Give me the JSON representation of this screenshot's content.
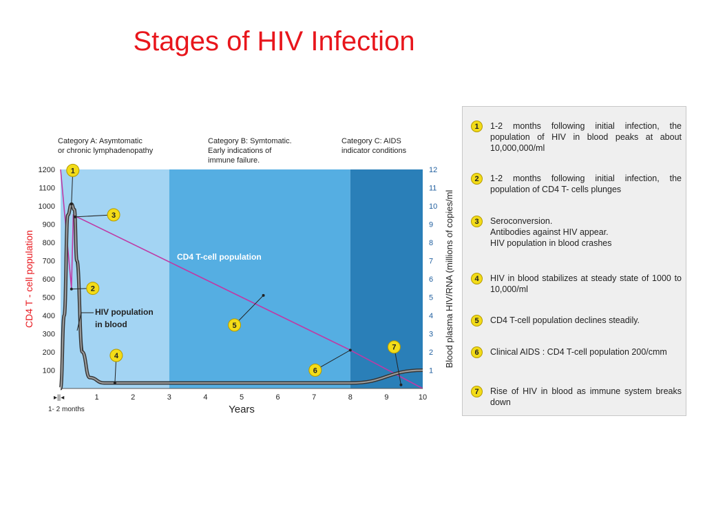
{
  "title": "Stages of HIV Infection",
  "chart_data": {
    "type": "line",
    "x_range": [
      0,
      10
    ],
    "x_ticks": [
      1,
      2,
      3,
      4,
      5,
      6,
      7,
      8,
      9,
      10
    ],
    "x_prefix_label": "1- 2 months",
    "xlabel": "Years",
    "ylabel_left": "CD4 T - cell population",
    "ylabel_right": "Blood plasma HIV/RNA (millions of copies/ml",
    "yleft_range": [
      0,
      1200
    ],
    "yleft_ticks": [
      100,
      200,
      300,
      400,
      500,
      600,
      700,
      800,
      900,
      1000,
      1100,
      1200
    ],
    "yright_range": [
      0,
      12
    ],
    "yright_ticks": [
      1,
      2,
      3,
      4,
      5,
      6,
      7,
      8,
      9,
      10,
      11,
      12
    ],
    "colors": {
      "category_a": "#a3d4f3",
      "category_b": "#55aee2",
      "category_c": "#2a7fb8",
      "cd4_line": "#bf3aa5",
      "hiv_line": "#333333",
      "badge": "#f3dc18",
      "left_axis_label": "#e8161c",
      "right_ticks": "#1f5e9e"
    },
    "categories": [
      {
        "label_line1": "Category A: Asymtomatic",
        "label_line2": "or chronic lymphadenopathy",
        "label_line3": "",
        "x_start": 0,
        "x_end": 3
      },
      {
        "label_line1": "Category B: Symtomatic.",
        "label_line2": "Early indications of",
        "label_line3": "immune failure.",
        "x_start": 3,
        "x_end": 8
      },
      {
        "label_line1": "Category C: AIDS",
        "label_line2": "indicator conditions",
        "label_line3": "",
        "x_start": 8,
        "x_end": 10
      }
    ],
    "series": [
      {
        "name": "CD4 T-cell population",
        "axis": "left",
        "points": [
          [
            0,
            1200
          ],
          [
            0.3,
            550
          ],
          [
            0.35,
            950
          ],
          [
            8,
            210
          ],
          [
            10,
            0
          ]
        ]
      },
      {
        "name_line1": "HIV population",
        "name_line2": "in blood",
        "axis": "right",
        "points": [
          [
            0,
            0
          ],
          [
            0.1,
            4
          ],
          [
            0.2,
            9.5
          ],
          [
            0.3,
            10.1
          ],
          [
            0.38,
            9.8
          ],
          [
            0.45,
            7
          ],
          [
            0.6,
            2
          ],
          [
            0.8,
            0.6
          ],
          [
            1.2,
            0.3
          ],
          [
            8,
            0.3
          ],
          [
            10,
            1
          ]
        ]
      }
    ],
    "markers": [
      {
        "label": "1",
        "x": 0.3,
        "y_axis": "left",
        "y": 1010
      },
      {
        "label": "2",
        "x": 0.3,
        "y_axis": "left",
        "y": 545
      },
      {
        "label": "3",
        "x": 0.4,
        "y_axis": "left",
        "y": 940
      },
      {
        "label": "4",
        "x": 1.5,
        "y_axis": "right",
        "y": 0.3
      },
      {
        "label": "5",
        "x": 5.6,
        "y_axis": "left",
        "y": 510
      },
      {
        "label": "6",
        "x": 8,
        "y_axis": "left",
        "y": 210
      },
      {
        "label": "7",
        "x": 9.4,
        "y_axis": "left",
        "y": 20
      }
    ]
  },
  "legend": [
    {
      "number": "1",
      "text": "1-2 months following initial infection, the population of HIV in blood peaks at about  10,000,000/ml"
    },
    {
      "number": "2",
      "text": "1-2 months following initial infection, the population of CD4 T- cells plunges"
    },
    {
      "number": "3",
      "text": "Seroconversion.\nAntibodies against HIV appear.\nHIV population in blood crashes"
    },
    {
      "number": "4",
      "text": "HIV in blood stabilizes at steady state of 1000 to 10,000/ml"
    },
    {
      "number": "5",
      "text": "CD4 T-cell population declines steadily."
    },
    {
      "number": "6",
      "text": "Clinical AIDS : CD4 T-cell population 200/cmm"
    },
    {
      "number": "7",
      "text": "Rise of HIV in blood as immune system breaks down"
    }
  ]
}
